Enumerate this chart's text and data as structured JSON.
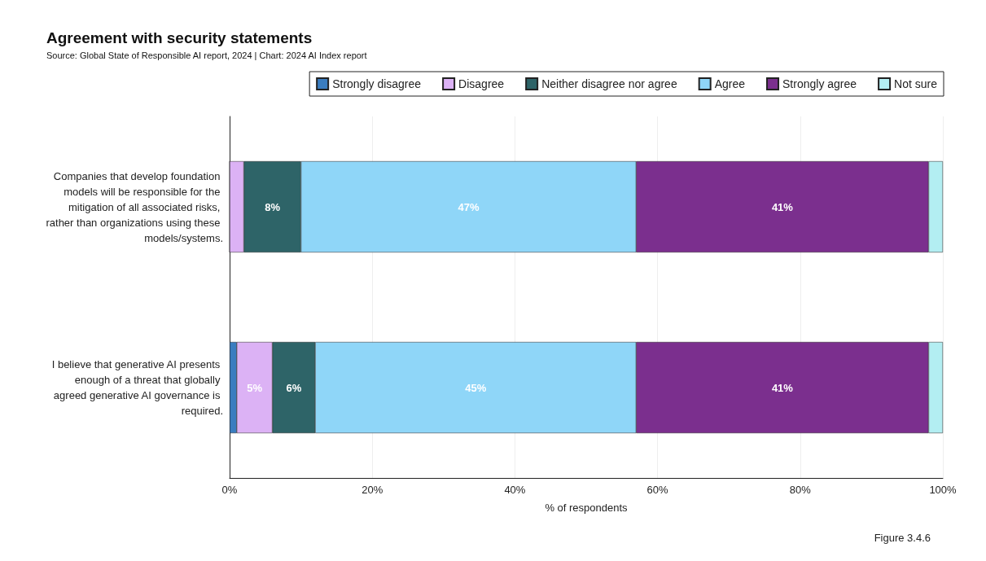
{
  "chart_data": {
    "type": "bar",
    "orientation": "horizontal",
    "stacked": true,
    "title": "Agreement with security statements",
    "subtitle": "Source: Global State of Responsible AI report, 2024 | Chart: 2024 AI Index report",
    "xlabel": "% of respondents",
    "categories": [
      "Companies that develop foundation models will be responsible for the mitigation of all associated risks, rather than organizations using these models/systems.",
      "I believe that generative AI presents enough of a threat that globally agreed generative AI governance is required."
    ],
    "series": [
      {
        "name": "Strongly disagree",
        "color": "#3a7dc0",
        "values": [
          0,
          1
        ],
        "value_labels": [
          null,
          null
        ]
      },
      {
        "name": "Disagree",
        "color": "#dcb2f5",
        "values": [
          2,
          5
        ],
        "value_labels": [
          null,
          "5%"
        ]
      },
      {
        "name": "Neither disagree nor agree",
        "color": "#2e6468",
        "values": [
          8,
          6
        ],
        "value_labels": [
          "8%",
          "6%"
        ]
      },
      {
        "name": "Agree",
        "color": "#8fd6f8",
        "values": [
          47,
          45
        ],
        "value_labels": [
          "47%",
          "45%"
        ]
      },
      {
        "name": "Strongly agree",
        "color": "#7b2f8e",
        "values": [
          41,
          41
        ],
        "value_labels": [
          "41%",
          "41%"
        ]
      },
      {
        "name": "Not sure",
        "color": "#b3eef2",
        "values": [
          2,
          2
        ],
        "value_labels": [
          null,
          null
        ]
      }
    ],
    "xlim": [
      0,
      100
    ],
    "xticks": [
      {
        "value": 0,
        "label": "0%"
      },
      {
        "value": 20,
        "label": "20%"
      },
      {
        "value": 40,
        "label": "40%"
      },
      {
        "value": 60,
        "label": "60%"
      },
      {
        "value": 80,
        "label": "80%"
      },
      {
        "value": 100,
        "label": "100%"
      }
    ],
    "grid": "x",
    "legend": "top",
    "annotations": [
      "Figure 3.4.6"
    ]
  }
}
